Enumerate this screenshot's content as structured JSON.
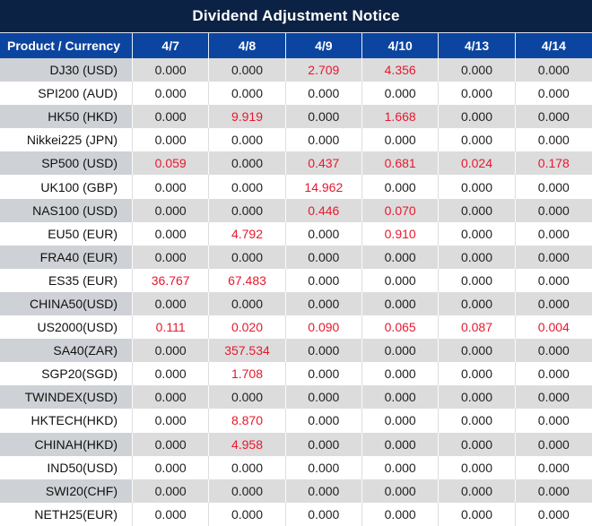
{
  "title": "Dividend Adjustment Notice",
  "colors": {
    "title_bg": "#0b2244",
    "header_bg": "#0c45a0",
    "alt_row_label_bg": "#ced1d6",
    "alt_row_value_bg": "#dcdcdd",
    "zero_text": "#1f1f1f",
    "nonzero_text": "#e8182d",
    "header_text": "#ffffff"
  },
  "table": {
    "product_header": "Product / Currency",
    "date_headers": [
      "4/7",
      "4/8",
      "4/9",
      "4/10",
      "4/13",
      "4/14"
    ],
    "rows": [
      {
        "product": "DJ30 (USD)",
        "values": [
          "0.000",
          "0.000",
          "2.709",
          "4.356",
          "0.000",
          "0.000"
        ]
      },
      {
        "product": "SPI200 (AUD)",
        "values": [
          "0.000",
          "0.000",
          "0.000",
          "0.000",
          "0.000",
          "0.000"
        ]
      },
      {
        "product": "HK50 (HKD)",
        "values": [
          "0.000",
          "9.919",
          "0.000",
          "1.668",
          "0.000",
          "0.000"
        ]
      },
      {
        "product": "Nikkei225 (JPN)",
        "values": [
          "0.000",
          "0.000",
          "0.000",
          "0.000",
          "0.000",
          "0.000"
        ]
      },
      {
        "product": "SP500 (USD)",
        "values": [
          "0.059",
          "0.000",
          "0.437",
          "0.681",
          "0.024",
          "0.178"
        ]
      },
      {
        "product": "UK100 (GBP)",
        "values": [
          "0.000",
          "0.000",
          "14.962",
          "0.000",
          "0.000",
          "0.000"
        ]
      },
      {
        "product": "NAS100 (USD)",
        "values": [
          "0.000",
          "0.000",
          "0.446",
          "0.070",
          "0.000",
          "0.000"
        ]
      },
      {
        "product": "EU50 (EUR)",
        "values": [
          "0.000",
          "4.792",
          "0.000",
          "0.910",
          "0.000",
          "0.000"
        ]
      },
      {
        "product": "FRA40 (EUR)",
        "values": [
          "0.000",
          "0.000",
          "0.000",
          "0.000",
          "0.000",
          "0.000"
        ]
      },
      {
        "product": "ES35 (EUR)",
        "values": [
          "36.767",
          "67.483",
          "0.000",
          "0.000",
          "0.000",
          "0.000"
        ]
      },
      {
        "product": "CHINA50(USD)",
        "values": [
          "0.000",
          "0.000",
          "0.000",
          "0.000",
          "0.000",
          "0.000"
        ]
      },
      {
        "product": "US2000(USD)",
        "values": [
          "0.111",
          "0.020",
          "0.090",
          "0.065",
          "0.087",
          "0.004"
        ]
      },
      {
        "product": "SA40(ZAR)",
        "values": [
          "0.000",
          "357.534",
          "0.000",
          "0.000",
          "0.000",
          "0.000"
        ]
      },
      {
        "product": "SGP20(SGD)",
        "values": [
          "0.000",
          "1.708",
          "0.000",
          "0.000",
          "0.000",
          "0.000"
        ]
      },
      {
        "product": "TWINDEX(USD)",
        "values": [
          "0.000",
          "0.000",
          "0.000",
          "0.000",
          "0.000",
          "0.000"
        ]
      },
      {
        "product": "HKTECH(HKD)",
        "values": [
          "0.000",
          "8.870",
          "0.000",
          "0.000",
          "0.000",
          "0.000"
        ]
      },
      {
        "product": "CHINAH(HKD)",
        "values": [
          "0.000",
          "4.958",
          "0.000",
          "0.000",
          "0.000",
          "0.000"
        ]
      },
      {
        "product": "IND50(USD)",
        "values": [
          "0.000",
          "0.000",
          "0.000",
          "0.000",
          "0.000",
          "0.000"
        ]
      },
      {
        "product": "SWI20(CHF)",
        "values": [
          "0.000",
          "0.000",
          "0.000",
          "0.000",
          "0.000",
          "0.000"
        ]
      },
      {
        "product": "NETH25(EUR)",
        "values": [
          "0.000",
          "0.000",
          "0.000",
          "0.000",
          "0.000",
          "0.000"
        ]
      }
    ]
  }
}
